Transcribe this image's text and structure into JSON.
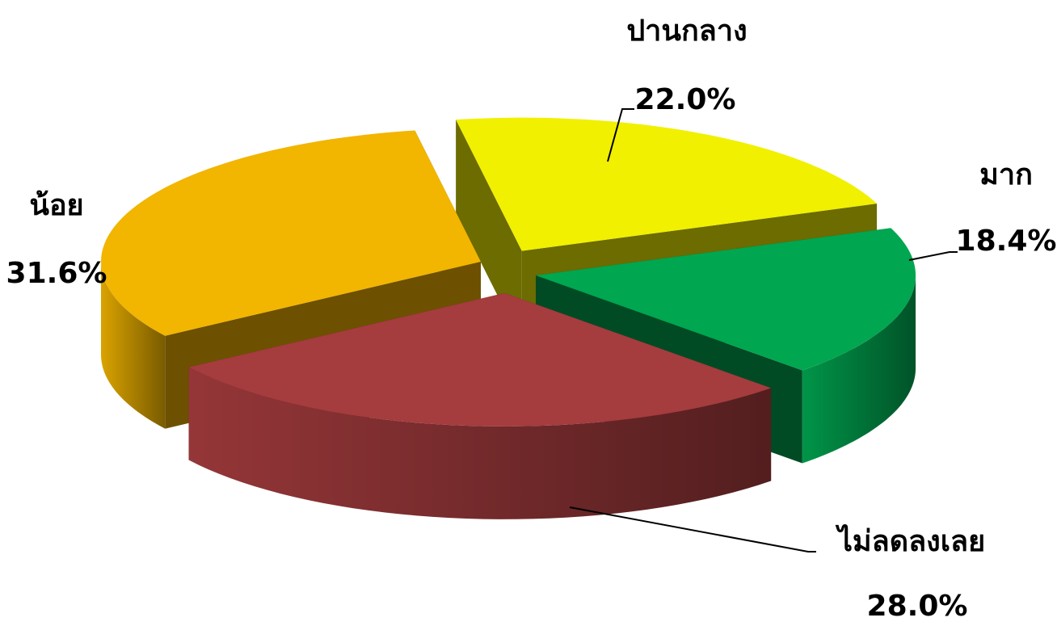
{
  "chart_data": {
    "type": "pie3d",
    "categories": [
      "ปานกลาง",
      "มาก",
      "ไม่ลดลงเลย",
      "น้อย"
    ],
    "values": [
      22.0,
      18.4,
      28.0,
      31.6
    ],
    "value_labels": [
      "22.0%",
      "18.4%",
      "28.0%",
      "31.6%"
    ],
    "colors": [
      "#f0f000",
      "#00a650",
      "#a53c3e",
      "#f2b500"
    ]
  }
}
